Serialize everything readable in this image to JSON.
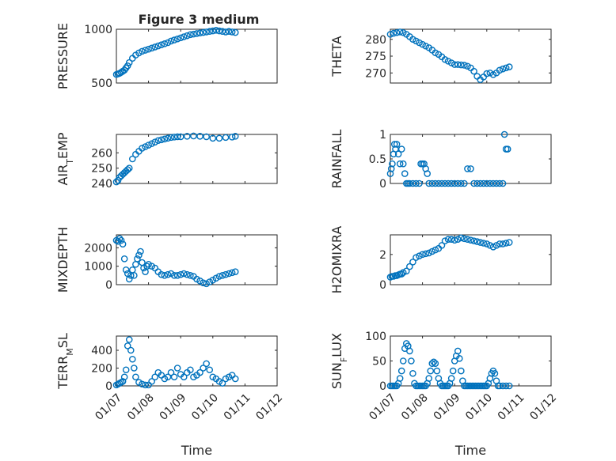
{
  "figure": {
    "title": "Figure 3 medium",
    "marker_color": "#0072BD",
    "marker_shape": "circle-open",
    "grid": "on"
  },
  "chart_data": [
    {
      "type": "scatter",
      "id": "pressure",
      "ylabel_parts": [
        "PRESSURE"
      ],
      "ylim": [
        500,
        1000
      ],
      "yticks": [
        500,
        1000
      ],
      "ytick_labels": [
        "500",
        "1000"
      ],
      "xlim": [
        1,
        6
      ],
      "xticks": [
        1,
        2,
        3,
        4,
        5,
        6
      ],
      "xtick_labels": [],
      "x": [
        1.0,
        1.05,
        1.1,
        1.15,
        1.2,
        1.25,
        1.3,
        1.35,
        1.4,
        1.5,
        1.6,
        1.7,
        1.8,
        1.9,
        2.0,
        2.1,
        2.2,
        2.3,
        2.4,
        2.5,
        2.6,
        2.7,
        2.8,
        2.9,
        3.0,
        3.1,
        3.2,
        3.3,
        3.4,
        3.5,
        3.6,
        3.7,
        3.8,
        3.9,
        4.0,
        4.1,
        4.2,
        4.3,
        4.4,
        4.5,
        4.6,
        4.7
      ],
      "y": [
        580,
        585,
        590,
        600,
        610,
        620,
        640,
        660,
        690,
        730,
        760,
        780,
        795,
        805,
        815,
        825,
        835,
        845,
        855,
        865,
        875,
        890,
        900,
        910,
        920,
        930,
        940,
        950,
        955,
        960,
        965,
        970,
        975,
        980,
        985,
        990,
        985,
        980,
        975,
        980,
        975,
        970
      ]
    },
    {
      "type": "scatter",
      "id": "theta",
      "ylabel_parts": [
        "THETA"
      ],
      "ylim": [
        267,
        283
      ],
      "yticks": [
        270,
        275,
        280
      ],
      "ytick_labels": [
        "270",
        "275",
        "280"
      ],
      "xlim": [
        1,
        6
      ],
      "xticks": [
        1,
        2,
        3,
        4,
        5,
        6
      ],
      "xtick_labels": [],
      "x": [
        1.0,
        1.1,
        1.2,
        1.3,
        1.4,
        1.5,
        1.6,
        1.7,
        1.8,
        1.9,
        2.0,
        2.1,
        2.2,
        2.3,
        2.4,
        2.5,
        2.6,
        2.7,
        2.8,
        2.9,
        3.0,
        3.1,
        3.2,
        3.3,
        3.4,
        3.5,
        3.6,
        3.7,
        3.8,
        3.9,
        4.0,
        4.1,
        4.2,
        4.3,
        4.4,
        4.5,
        4.6,
        4.7
      ],
      "y": [
        281.5,
        281.8,
        282.0,
        282.2,
        282.0,
        281.5,
        280.8,
        280.0,
        279.5,
        279.0,
        278.5,
        278.0,
        277.5,
        276.8,
        276.0,
        275.5,
        274.8,
        274.0,
        273.5,
        273.0,
        272.5,
        272.5,
        272.4,
        272.3,
        272.0,
        271.5,
        270.5,
        269.0,
        268.0,
        268.8,
        269.8,
        270.0,
        269.5,
        270.0,
        270.8,
        271.2,
        271.5,
        271.8
      ]
    },
    {
      "type": "scatter",
      "id": "air-temp",
      "ylabel_parts": [
        "AIR",
        "T",
        "EMP"
      ],
      "ylim": [
        240,
        272
      ],
      "yticks": [
        240,
        250,
        260
      ],
      "ytick_labels": [
        "240",
        "250",
        "260"
      ],
      "xlim": [
        1,
        6
      ],
      "xticks": [
        1,
        2,
        3,
        4,
        5,
        6
      ],
      "xtick_labels": [],
      "x": [
        1.0,
        1.05,
        1.1,
        1.15,
        1.2,
        1.25,
        1.3,
        1.35,
        1.4,
        1.5,
        1.6,
        1.7,
        1.8,
        1.9,
        2.0,
        2.1,
        2.2,
        2.3,
        2.4,
        2.5,
        2.6,
        2.7,
        2.8,
        2.9,
        3.0,
        3.2,
        3.4,
        3.6,
        3.8,
        4.0,
        4.2,
        4.4,
        4.6,
        4.7
      ],
      "y": [
        241,
        242,
        244,
        245,
        246,
        247,
        248,
        249,
        250,
        256,
        259,
        261,
        263,
        264,
        265,
        266,
        267,
        268,
        268.5,
        269,
        269.5,
        270,
        270.3,
        270.5,
        270.5,
        270.8,
        271,
        270.8,
        270.5,
        269.5,
        269.5,
        270,
        270.3,
        270.8
      ]
    },
    {
      "type": "scatter",
      "id": "rainfall",
      "ylabel_parts": [
        "RAINFALL"
      ],
      "ylim": [
        0,
        1
      ],
      "yticks": [
        0,
        0.5,
        1
      ],
      "ytick_labels": [
        "0",
        "0.5",
        "1"
      ],
      "xlim": [
        1,
        6
      ],
      "xticks": [
        1,
        2,
        3,
        4,
        5,
        6
      ],
      "xtick_labels": [],
      "x": [
        1.0,
        1.03,
        1.06,
        1.1,
        1.13,
        1.16,
        1.2,
        1.25,
        1.3,
        1.35,
        1.4,
        1.45,
        1.5,
        1.55,
        1.6,
        1.7,
        1.8,
        1.9,
        1.95,
        2.0,
        2.05,
        2.1,
        2.15,
        2.2,
        2.3,
        2.4,
        2.5,
        2.6,
        2.7,
        2.8,
        2.9,
        3.0,
        3.1,
        3.2,
        3.3,
        3.4,
        3.5,
        3.6,
        3.7,
        3.8,
        3.9,
        4.0,
        4.1,
        4.2,
        4.3,
        4.4,
        4.5,
        4.55,
        4.6,
        4.65
      ],
      "y": [
        0.2,
        0.3,
        0.4,
        0.6,
        0.8,
        0.7,
        0.8,
        0.6,
        0.4,
        0.7,
        0.4,
        0.2,
        0.0,
        0.0,
        0.0,
        0.0,
        0.0,
        0.0,
        0.4,
        0.4,
        0.4,
        0.3,
        0.2,
        0.0,
        0.0,
        0.0,
        0.0,
        0.0,
        0.0,
        0.0,
        0.0,
        0.0,
        0.0,
        0.0,
        0.0,
        0.3,
        0.3,
        0.0,
        0.0,
        0.0,
        0.0,
        0.0,
        0.0,
        0.0,
        0.0,
        0.0,
        0.0,
        1.0,
        0.7,
        0.7
      ]
    },
    {
      "type": "scatter",
      "id": "mixdepth",
      "ylabel_parts": [
        "MIXDEPTH"
      ],
      "ylim": [
        0,
        2700
      ],
      "yticks": [
        0,
        1000,
        2000
      ],
      "ytick_labels": [
        "0",
        "1000",
        "2000"
      ],
      "xlim": [
        1,
        6
      ],
      "xticks": [
        1,
        2,
        3,
        4,
        5,
        6
      ],
      "xtick_labels": [],
      "x": [
        1.0,
        1.05,
        1.1,
        1.15,
        1.2,
        1.25,
        1.3,
        1.35,
        1.4,
        1.45,
        1.5,
        1.55,
        1.6,
        1.65,
        1.7,
        1.75,
        1.8,
        1.85,
        1.9,
        1.95,
        2.0,
        2.1,
        2.2,
        2.3,
        2.4,
        2.5,
        2.6,
        2.7,
        2.8,
        2.9,
        3.0,
        3.1,
        3.2,
        3.3,
        3.4,
        3.5,
        3.6,
        3.7,
        3.8,
        3.9,
        4.0,
        4.1,
        4.2,
        4.3,
        4.4,
        4.5,
        4.6,
        4.7
      ],
      "y": [
        2400,
        2350,
        2500,
        2400,
        2200,
        1400,
        800,
        600,
        300,
        500,
        800,
        500,
        1100,
        1400,
        1600,
        1800,
        1200,
        900,
        700,
        1000,
        1100,
        1000,
        900,
        700,
        550,
        500,
        550,
        600,
        500,
        500,
        550,
        600,
        550,
        500,
        450,
        300,
        200,
        100,
        50,
        150,
        250,
        350,
        450,
        500,
        550,
        600,
        650,
        700
      ]
    },
    {
      "type": "scatter",
      "id": "h2omixra",
      "ylabel_parts": [
        "H2OMIXRA"
      ],
      "ylim": [
        0,
        3.3
      ],
      "yticks": [
        0,
        2
      ],
      "ytick_labels": [
        "0",
        "2"
      ],
      "xlim": [
        1,
        6
      ],
      "xticks": [
        1,
        2,
        3,
        4,
        5,
        6
      ],
      "xtick_labels": [],
      "x": [
        1.0,
        1.05,
        1.1,
        1.15,
        1.2,
        1.25,
        1.3,
        1.35,
        1.4,
        1.5,
        1.6,
        1.7,
        1.8,
        1.9,
        2.0,
        2.1,
        2.2,
        2.3,
        2.4,
        2.5,
        2.6,
        2.7,
        2.8,
        2.9,
        3.0,
        3.1,
        3.2,
        3.3,
        3.4,
        3.5,
        3.6,
        3.7,
        3.8,
        3.9,
        4.0,
        4.1,
        4.2,
        4.3,
        4.4,
        4.5,
        4.6,
        4.7
      ],
      "y": [
        0.5,
        0.55,
        0.55,
        0.6,
        0.6,
        0.65,
        0.7,
        0.7,
        0.8,
        0.9,
        1.2,
        1.5,
        1.8,
        1.9,
        2.0,
        2.05,
        2.1,
        2.2,
        2.3,
        2.4,
        2.6,
        2.9,
        3.0,
        3.0,
        2.95,
        3.0,
        3.1,
        3.05,
        3.0,
        2.95,
        2.9,
        2.85,
        2.8,
        2.75,
        2.7,
        2.6,
        2.5,
        2.6,
        2.7,
        2.7,
        2.75,
        2.8
      ]
    },
    {
      "type": "scatter",
      "id": "terr-msl",
      "ylabel_parts": [
        "TERR",
        "M",
        "SL"
      ],
      "ylim": [
        0,
        560
      ],
      "yticks": [
        0,
        200,
        400
      ],
      "ytick_labels": [
        "0",
        "200",
        "400"
      ],
      "xlim": [
        1,
        6
      ],
      "xticks": [
        1,
        2,
        3,
        4,
        5,
        6
      ],
      "xtick_labels": [
        "01/07",
        "01/08",
        "01/09",
        "01/10",
        "01/11",
        "01/12"
      ],
      "xlabel": "Time",
      "x": [
        1.0,
        1.05,
        1.1,
        1.15,
        1.2,
        1.25,
        1.3,
        1.35,
        1.4,
        1.45,
        1.5,
        1.55,
        1.6,
        1.7,
        1.8,
        1.9,
        2.0,
        2.1,
        2.2,
        2.3,
        2.4,
        2.5,
        2.6,
        2.7,
        2.8,
        2.9,
        3.0,
        3.1,
        3.2,
        3.3,
        3.4,
        3.5,
        3.6,
        3.7,
        3.8,
        3.9,
        4.0,
        4.1,
        4.2,
        4.3,
        4.4,
        4.5,
        4.6,
        4.7
      ],
      "y": [
        10,
        20,
        30,
        40,
        50,
        100,
        180,
        450,
        520,
        400,
        300,
        200,
        100,
        40,
        20,
        10,
        10,
        50,
        100,
        150,
        120,
        80,
        100,
        150,
        100,
        200,
        130,
        100,
        150,
        180,
        100,
        120,
        150,
        200,
        250,
        180,
        100,
        80,
        50,
        30,
        80,
        100,
        120,
        80
      ]
    },
    {
      "type": "scatter",
      "id": "sun-flux",
      "ylabel_parts": [
        "SUN",
        "F",
        "LUX"
      ],
      "ylim": [
        0,
        100
      ],
      "yticks": [
        0,
        50,
        100
      ],
      "ytick_labels": [
        "0",
        "50",
        "100"
      ],
      "xlim": [
        1,
        6
      ],
      "xticks": [
        1,
        2,
        3,
        4,
        5,
        6
      ],
      "xtick_labels": [
        "01/07",
        "01/08",
        "01/09",
        "01/10",
        "01/11",
        "01/12"
      ],
      "xlabel": "Time",
      "x": [
        1.0,
        1.05,
        1.1,
        1.15,
        1.2,
        1.25,
        1.3,
        1.35,
        1.4,
        1.45,
        1.5,
        1.55,
        1.6,
        1.65,
        1.7,
        1.75,
        1.8,
        1.85,
        1.9,
        1.95,
        2.0,
        2.05,
        2.1,
        2.15,
        2.2,
        2.25,
        2.3,
        2.35,
        2.4,
        2.45,
        2.5,
        2.55,
        2.6,
        2.65,
        2.7,
        2.75,
        2.8,
        2.85,
        2.9,
        2.95,
        3.0,
        3.05,
        3.1,
        3.15,
        3.2,
        3.25,
        3.3,
        3.35,
        3.4,
        3.45,
        3.5,
        3.55,
        3.6,
        3.65,
        3.7,
        3.75,
        3.8,
        3.85,
        3.9,
        3.95,
        4.0,
        4.05,
        4.1,
        4.15,
        4.2,
        4.25,
        4.3,
        4.35,
        4.4,
        4.5,
        4.6,
        4.7
      ],
      "y": [
        0,
        0,
        0,
        0,
        0,
        5,
        15,
        30,
        50,
        75,
        85,
        80,
        70,
        50,
        25,
        5,
        0,
        0,
        0,
        0,
        0,
        0,
        0,
        5,
        15,
        30,
        45,
        48,
        45,
        30,
        15,
        5,
        0,
        0,
        0,
        0,
        0,
        5,
        15,
        30,
        50,
        60,
        70,
        55,
        30,
        10,
        0,
        0,
        0,
        0,
        0,
        0,
        0,
        0,
        0,
        0,
        0,
        0,
        0,
        0,
        0,
        5,
        15,
        25,
        30,
        25,
        10,
        0,
        0,
        0,
        0,
        0
      ]
    }
  ]
}
